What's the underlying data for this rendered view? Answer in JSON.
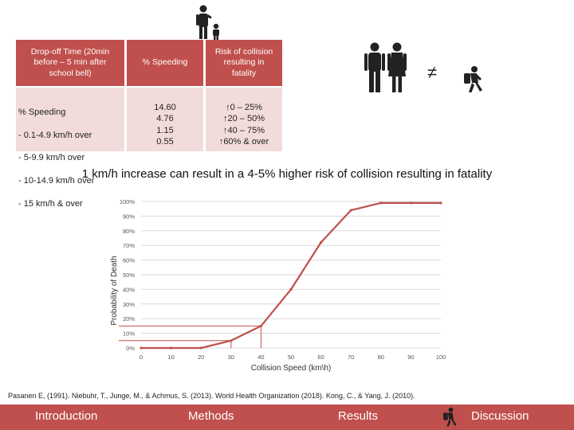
{
  "table": {
    "headers": {
      "dropoff": "Drop-off Time (20min before – 5 min after school bell)",
      "speeding": "% Speeding",
      "risk": "Risk of collision resulting in fatality"
    },
    "speed_block_title": "% Speeding",
    "speed_ranges": [
      "- 0.1-4.9 km/h over",
      "- 5-9.9 km/h over",
      "- 10-14.9 km/h over",
      "- 15 km/h & over"
    ],
    "speeding_values": [
      "14.60",
      "4.76",
      "1.15",
      "0.55"
    ],
    "risk_values": [
      "↑0 – 25%",
      "↑20 – 50%",
      "↑40 – 75%",
      "↑60% & over"
    ]
  },
  "not_equal_symbol": "≠",
  "icons": {
    "parent_child": "parent-with-child-icon",
    "couple": "couple-icon",
    "student": "student-with-backpack-icon"
  },
  "headline": "1 km/h increase can result in a 4-5% higher risk of collision resulting in fatality",
  "chart_data": {
    "type": "line",
    "title": "",
    "xlabel": "Collision Speed (km\\h)",
    "ylabel": "Probability of Death",
    "x_ticks": [
      "0",
      "10",
      "20",
      "30",
      "40",
      "50",
      "60",
      "70",
      "80",
      "90",
      "100"
    ],
    "y_ticks": [
      "0%",
      "10%",
      "20%",
      "30%",
      "40%",
      "50%",
      "60%",
      "70%",
      "80%",
      "90%",
      "100%"
    ],
    "xlim": [
      0,
      100
    ],
    "ylim": [
      0,
      100
    ],
    "grid": "horizontal",
    "series": [
      {
        "name": "Probability of Death",
        "color": "#c0504d",
        "x": [
          0,
          10,
          20,
          30,
          40,
          50,
          60,
          70,
          80,
          90,
          100
        ],
        "y": [
          0,
          0,
          0,
          5,
          15,
          40,
          72,
          94,
          99,
          99,
          99
        ]
      }
    ],
    "reference_lines": [
      {
        "x": 30,
        "y": 5
      },
      {
        "x": 40,
        "y": 15
      }
    ]
  },
  "references": "Pasanen E, (1991). Niebuhr, T., Junge, M., & Achmus, S. (2013). World Health Organization (2018). Kong, C., & Yang, J. (2010).",
  "nav": {
    "introduction": "Introduction",
    "methods": "Methods",
    "results": "Results",
    "discussion": "Discussion"
  }
}
